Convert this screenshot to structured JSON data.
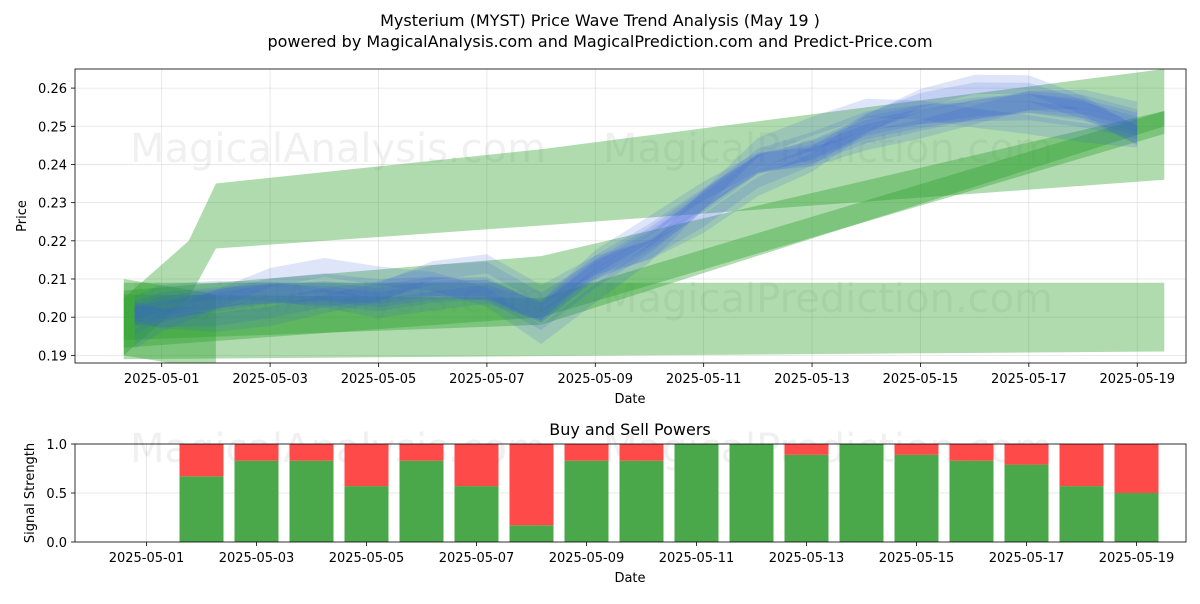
{
  "colors": {
    "green_band": "#2ca02c",
    "blue_band": "#3a5bd9",
    "buy": "#4aa74a",
    "sell": "#ff4a4a"
  },
  "chart_data": [
    {
      "type": "area",
      "title_line1": "Mysterium (MYST) Price Wave Trend Analysis (May 19 )",
      "title_line2": "powered by MagicalAnalysis.com and MagicalPrediction.com and Predict-Price.com",
      "xlabel": "Date",
      "ylabel": "Price",
      "ylim": [
        0.188,
        0.265
      ],
      "y_ticks": [
        0.19,
        0.2,
        0.21,
        0.22,
        0.23,
        0.24,
        0.25,
        0.26
      ],
      "y_tick_labels": [
        "0.19",
        "0.20",
        "0.21",
        "0.22",
        "0.23",
        "0.24",
        "0.25",
        "0.26"
      ],
      "xlim_days": [
        -0.6,
        19.9
      ],
      "x_ticks_day": [
        1,
        3,
        5,
        7,
        9,
        11,
        13,
        15,
        17,
        19
      ],
      "x_tick_labels": [
        "2025-05-01",
        "2025-05-03",
        "2025-05-05",
        "2025-05-07",
        "2025-05-09",
        "2025-05-11",
        "2025-05-13",
        "2025-05-15",
        "2025-05-17",
        "2025-05-19"
      ],
      "watermarks": [
        "MagicalAnalysis.com",
        "MagicalPrediction.com",
        "MagicalAnalysis.com",
        "MagicalPrediction.com"
      ],
      "green_bands": [
        {
          "name": "trend-a",
          "x": [
            0.3,
            1.5,
            2.0,
            8.0,
            19.5
          ],
          "upper": [
            0.205,
            0.22,
            0.235,
            0.244,
            0.265
          ],
          "lower": [
            0.19,
            0.205,
            0.218,
            0.224,
            0.236
          ]
        },
        {
          "name": "trend-b",
          "x": [
            0.3,
            19.5
          ],
          "upper": [
            0.209,
            0.209
          ],
          "lower": [
            0.189,
            0.191
          ]
        },
        {
          "name": "trend-c",
          "x": [
            0.3,
            8.0,
            19.5
          ],
          "upper": [
            0.207,
            0.216,
            0.254
          ],
          "lower": [
            0.192,
            0.2,
            0.248
          ]
        },
        {
          "name": "trend-d",
          "x": [
            0.3,
            8.0,
            19.5
          ],
          "upper": [
            0.206,
            0.205,
            0.254
          ],
          "lower": [
            0.194,
            0.198,
            0.25
          ]
        },
        {
          "name": "trend-e",
          "x": [
            0.3,
            2.0
          ],
          "upper": [
            0.21,
            0.206
          ],
          "lower": [
            0.19,
            0.186
          ]
        }
      ],
      "blue_center": {
        "x": [
          0.5,
          1,
          2,
          3,
          4,
          5,
          6,
          7,
          8,
          9,
          10,
          11,
          12,
          13,
          14,
          15,
          16,
          17,
          18,
          19
        ],
        "y": [
          0.2,
          0.202,
          0.204,
          0.206,
          0.207,
          0.206,
          0.208,
          0.208,
          0.201,
          0.212,
          0.22,
          0.23,
          0.24,
          0.244,
          0.25,
          0.253,
          0.255,
          0.256,
          0.254,
          0.25
        ]
      },
      "blue_offsets": [
        0.0,
        0.002,
        -0.002,
        0.004,
        -0.004,
        0.006,
        -0.006,
        0.001
      ],
      "blue_band_halfwidth": 0.0025
    },
    {
      "type": "bar",
      "title": "Buy and Sell Powers",
      "xlabel": "Date",
      "ylabel": "Signal Strength",
      "ylim": [
        0,
        1
      ],
      "y_ticks": [
        0,
        0.5,
        1.0
      ],
      "y_tick_labels": [
        "0.0",
        "0.5",
        "1.0"
      ],
      "xlim_days": [
        -0.3,
        19.9
      ],
      "x_ticks_day": [
        1,
        3,
        5,
        7,
        9,
        11,
        13,
        15,
        17,
        19
      ],
      "x_tick_labels": [
        "2025-05-01",
        "2025-05-03",
        "2025-05-05",
        "2025-05-07",
        "2025-05-09",
        "2025-05-11",
        "2025-05-13",
        "2025-05-15",
        "2025-05-17",
        "2025-05-19"
      ],
      "days": [
        2,
        3,
        4,
        5,
        6,
        7,
        8,
        9,
        10,
        11,
        12,
        13,
        14,
        15,
        16,
        17,
        18,
        19
      ],
      "buy": [
        0.67,
        0.83,
        0.83,
        0.57,
        0.83,
        0.57,
        0.17,
        0.83,
        0.83,
        1.0,
        1.0,
        0.89,
        1.0,
        0.89,
        0.83,
        0.79,
        0.57,
        0.5
      ],
      "sell": [
        0.33,
        0.17,
        0.17,
        0.43,
        0.17,
        0.43,
        0.83,
        0.17,
        0.17,
        0.0,
        0.0,
        0.11,
        0.0,
        0.11,
        0.17,
        0.21,
        0.43,
        0.5
      ],
      "watermarks": [
        "MagicalAnalysis.com",
        "MagicalPrediction.com"
      ]
    }
  ]
}
